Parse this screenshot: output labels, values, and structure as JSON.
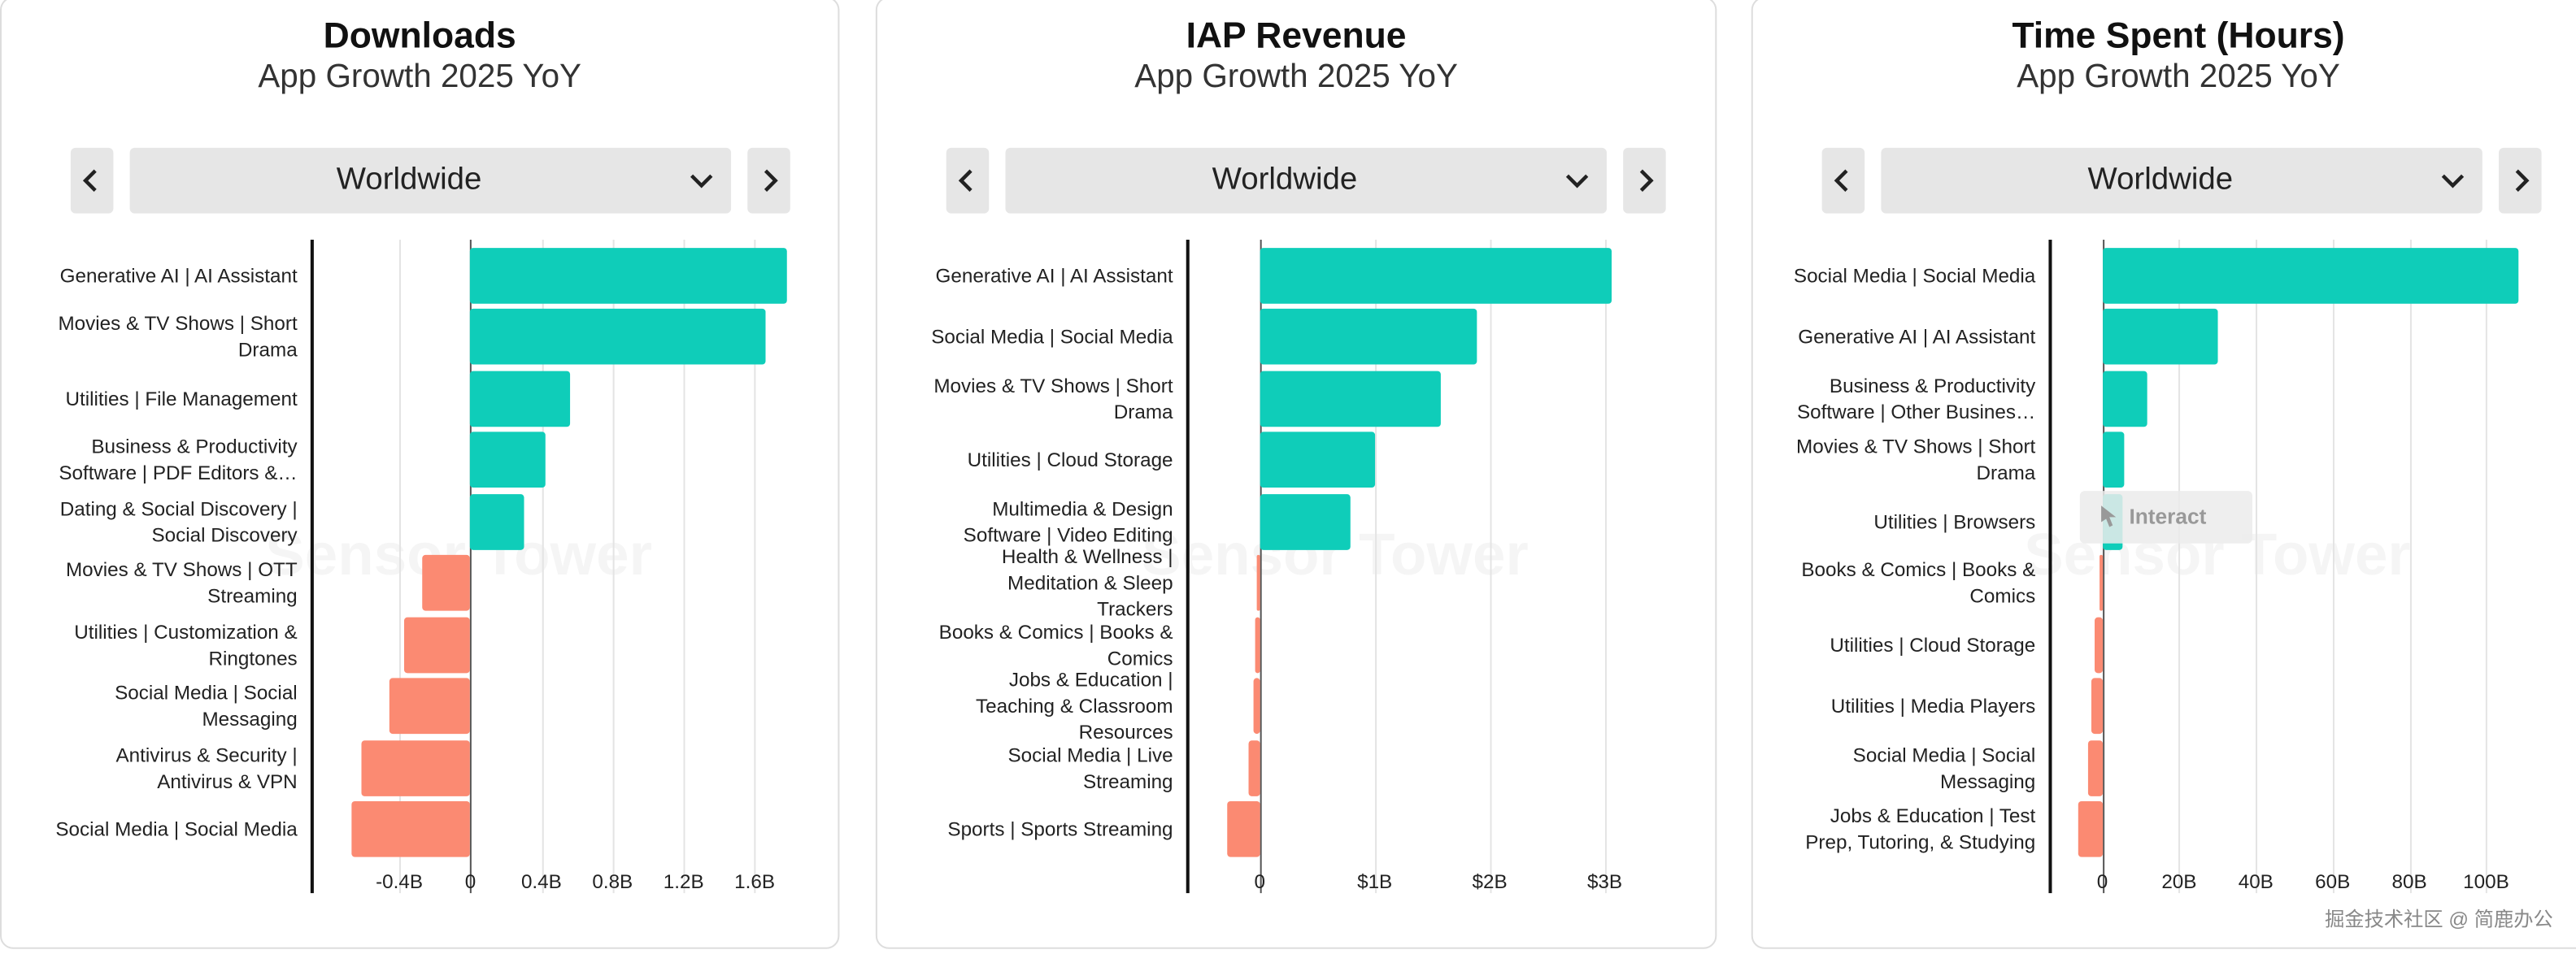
{
  "chart_data": [
    {
      "type": "bar",
      "orientation": "horizontal",
      "title": "Downloads",
      "subtitle": "App Growth 2025 YoY",
      "region": "Worldwide",
      "watermark": "Sensor Tower",
      "categories": [
        "Generative AI | AI Assistant",
        "Movies & TV Shows | Short Drama",
        "Utilities | File Management",
        "Business & Productivity Software | PDF Editors &…",
        "Dating & Social Discovery | Social Discovery",
        "Movies & TV Shows | OTT Streaming",
        "Utilities | Customization & Ringtones",
        "Social Media | Social Messaging",
        "Antivirus & Security | Antivirus & VPN",
        "Social Media | Social Media"
      ],
      "values": [
        1.78,
        1.66,
        0.56,
        0.42,
        0.3,
        -0.27,
        -0.37,
        -0.46,
        -0.61,
        -0.67
      ],
      "color": "#0fcdb9",
      "negative_color": "#fb8a72",
      "xlim": [
        -0.9,
        1.8
      ],
      "xticks": [
        {
          "value": -0.4,
          "label": "-0.4B"
        },
        0,
        {
          "value": 0.4,
          "label": "0.4B"
        },
        {
          "value": 0.8,
          "label": "0.8B"
        },
        {
          "value": 1.2,
          "label": "1.2B"
        },
        {
          "value": 1.6,
          "label": "1.6B"
        }
      ],
      "grid": true
    },
    {
      "type": "bar",
      "orientation": "horizontal",
      "title": "IAP Revenue",
      "subtitle": "App Growth 2025 YoY",
      "region": "Worldwide",
      "watermark": "Sensor Tower",
      "categories": [
        "Generative AI | AI Assistant",
        "Social Media | Social Media",
        "Movies & TV Shows | Short Drama",
        "Utilities | Cloud Storage",
        "Multimedia & Design Software | Video Editing",
        "Health & Wellness | Meditation & Sleep Trackers",
        "Books & Comics | Books & Comics",
        "Jobs & Education | Teaching & Classroom Resources",
        "Social Media | Live Streaming",
        "Sports | Sports Streaming"
      ],
      "values": [
        3.06,
        1.89,
        1.57,
        1.01,
        0.79,
        -0.03,
        -0.04,
        -0.06,
        -0.1,
        -0.29
      ],
      "color": "#0fcdb9",
      "negative_color": "#fb8a72",
      "xlim": [
        -0.64,
        3.46
      ],
      "xticks": [
        0,
        {
          "value": 1,
          "label": "$1B"
        },
        {
          "value": 2,
          "label": "$2B"
        },
        {
          "value": 3,
          "label": "$3B"
        }
      ],
      "grid": true
    },
    {
      "type": "bar",
      "orientation": "horizontal",
      "title": "Time Spent (Hours)",
      "subtitle": "App Growth 2025 YoY",
      "region": "Worldwide",
      "watermark": "Sensor Tower",
      "categories": [
        "Social Media | Social Media",
        "Generative AI | AI Assistant",
        "Business & Productivity Software | Other Busines…",
        "Movies & TV Shows | Short Drama",
        "Utilities | Browsers",
        "Books & Comics | Books & Comics",
        "Utilities | Cloud Storage",
        "Utilities | Media Players",
        "Social Media | Social Messaging",
        "Jobs & Education | Test Prep, Tutoring, & Studying"
      ],
      "values": [
        108.4,
        30.1,
        11.6,
        5.6,
        5.2,
        -0.9,
        -2.2,
        -3,
        -3.9,
        -6.5
      ],
      "color": "#0fcdb9",
      "negative_color": "#fb8a72",
      "xlim": [
        -14,
        114
      ],
      "xticks": [
        0,
        {
          "value": 20,
          "label": "20B"
        },
        {
          "value": 40,
          "label": "40B"
        },
        {
          "value": 60,
          "label": "60B"
        },
        {
          "value": 80,
          "label": "80B"
        },
        {
          "value": 100,
          "label": "100B"
        }
      ],
      "grid": true,
      "tooltip": "Interact"
    }
  ],
  "footer": "掘金技术社区 @ 简鹿办公"
}
